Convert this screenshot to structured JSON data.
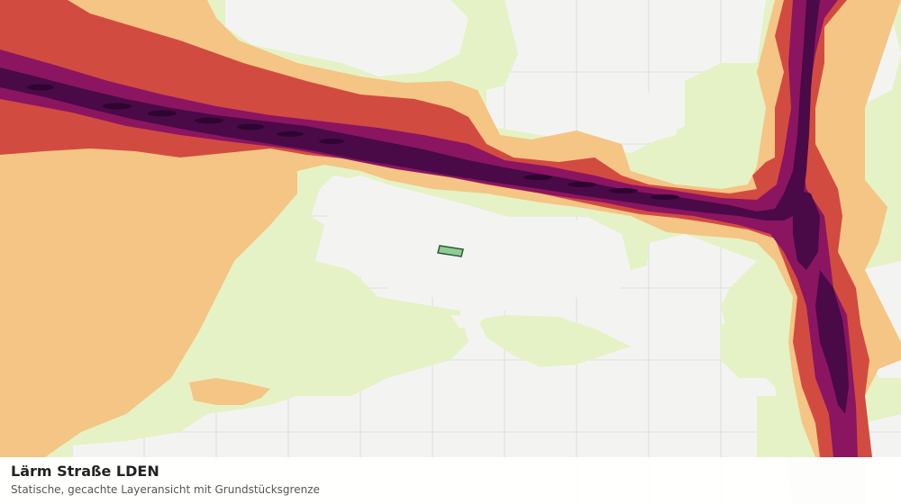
{
  "caption": {
    "title": "Lärm Straße LDEN",
    "subtitle": "Statische, gecachte Layeransicht mit Grundstücksgrenze"
  },
  "legend_colors": {
    "background": "#f3f4f2",
    "grid": "#dcdedb",
    "band_1": "#e5f2c5",
    "band_2": "#f4c584",
    "band_3": "#d24b40",
    "band_4": "#8b1561",
    "band_5": "#4a0a48",
    "parcel": "#8fce92"
  }
}
